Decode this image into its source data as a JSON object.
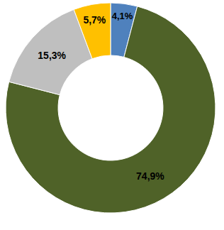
{
  "chart_data": {
    "type": "pie",
    "values": [
      4.1,
      74.9,
      15.3,
      5.7
    ],
    "value_labels": [
      "4,1%",
      "74,9%",
      "15,3%",
      "5,7%"
    ],
    "colors": [
      "#4f81bd",
      "#4f6228",
      "#bfbfbf",
      "#ffc000"
    ],
    "data_labels": true
  }
}
